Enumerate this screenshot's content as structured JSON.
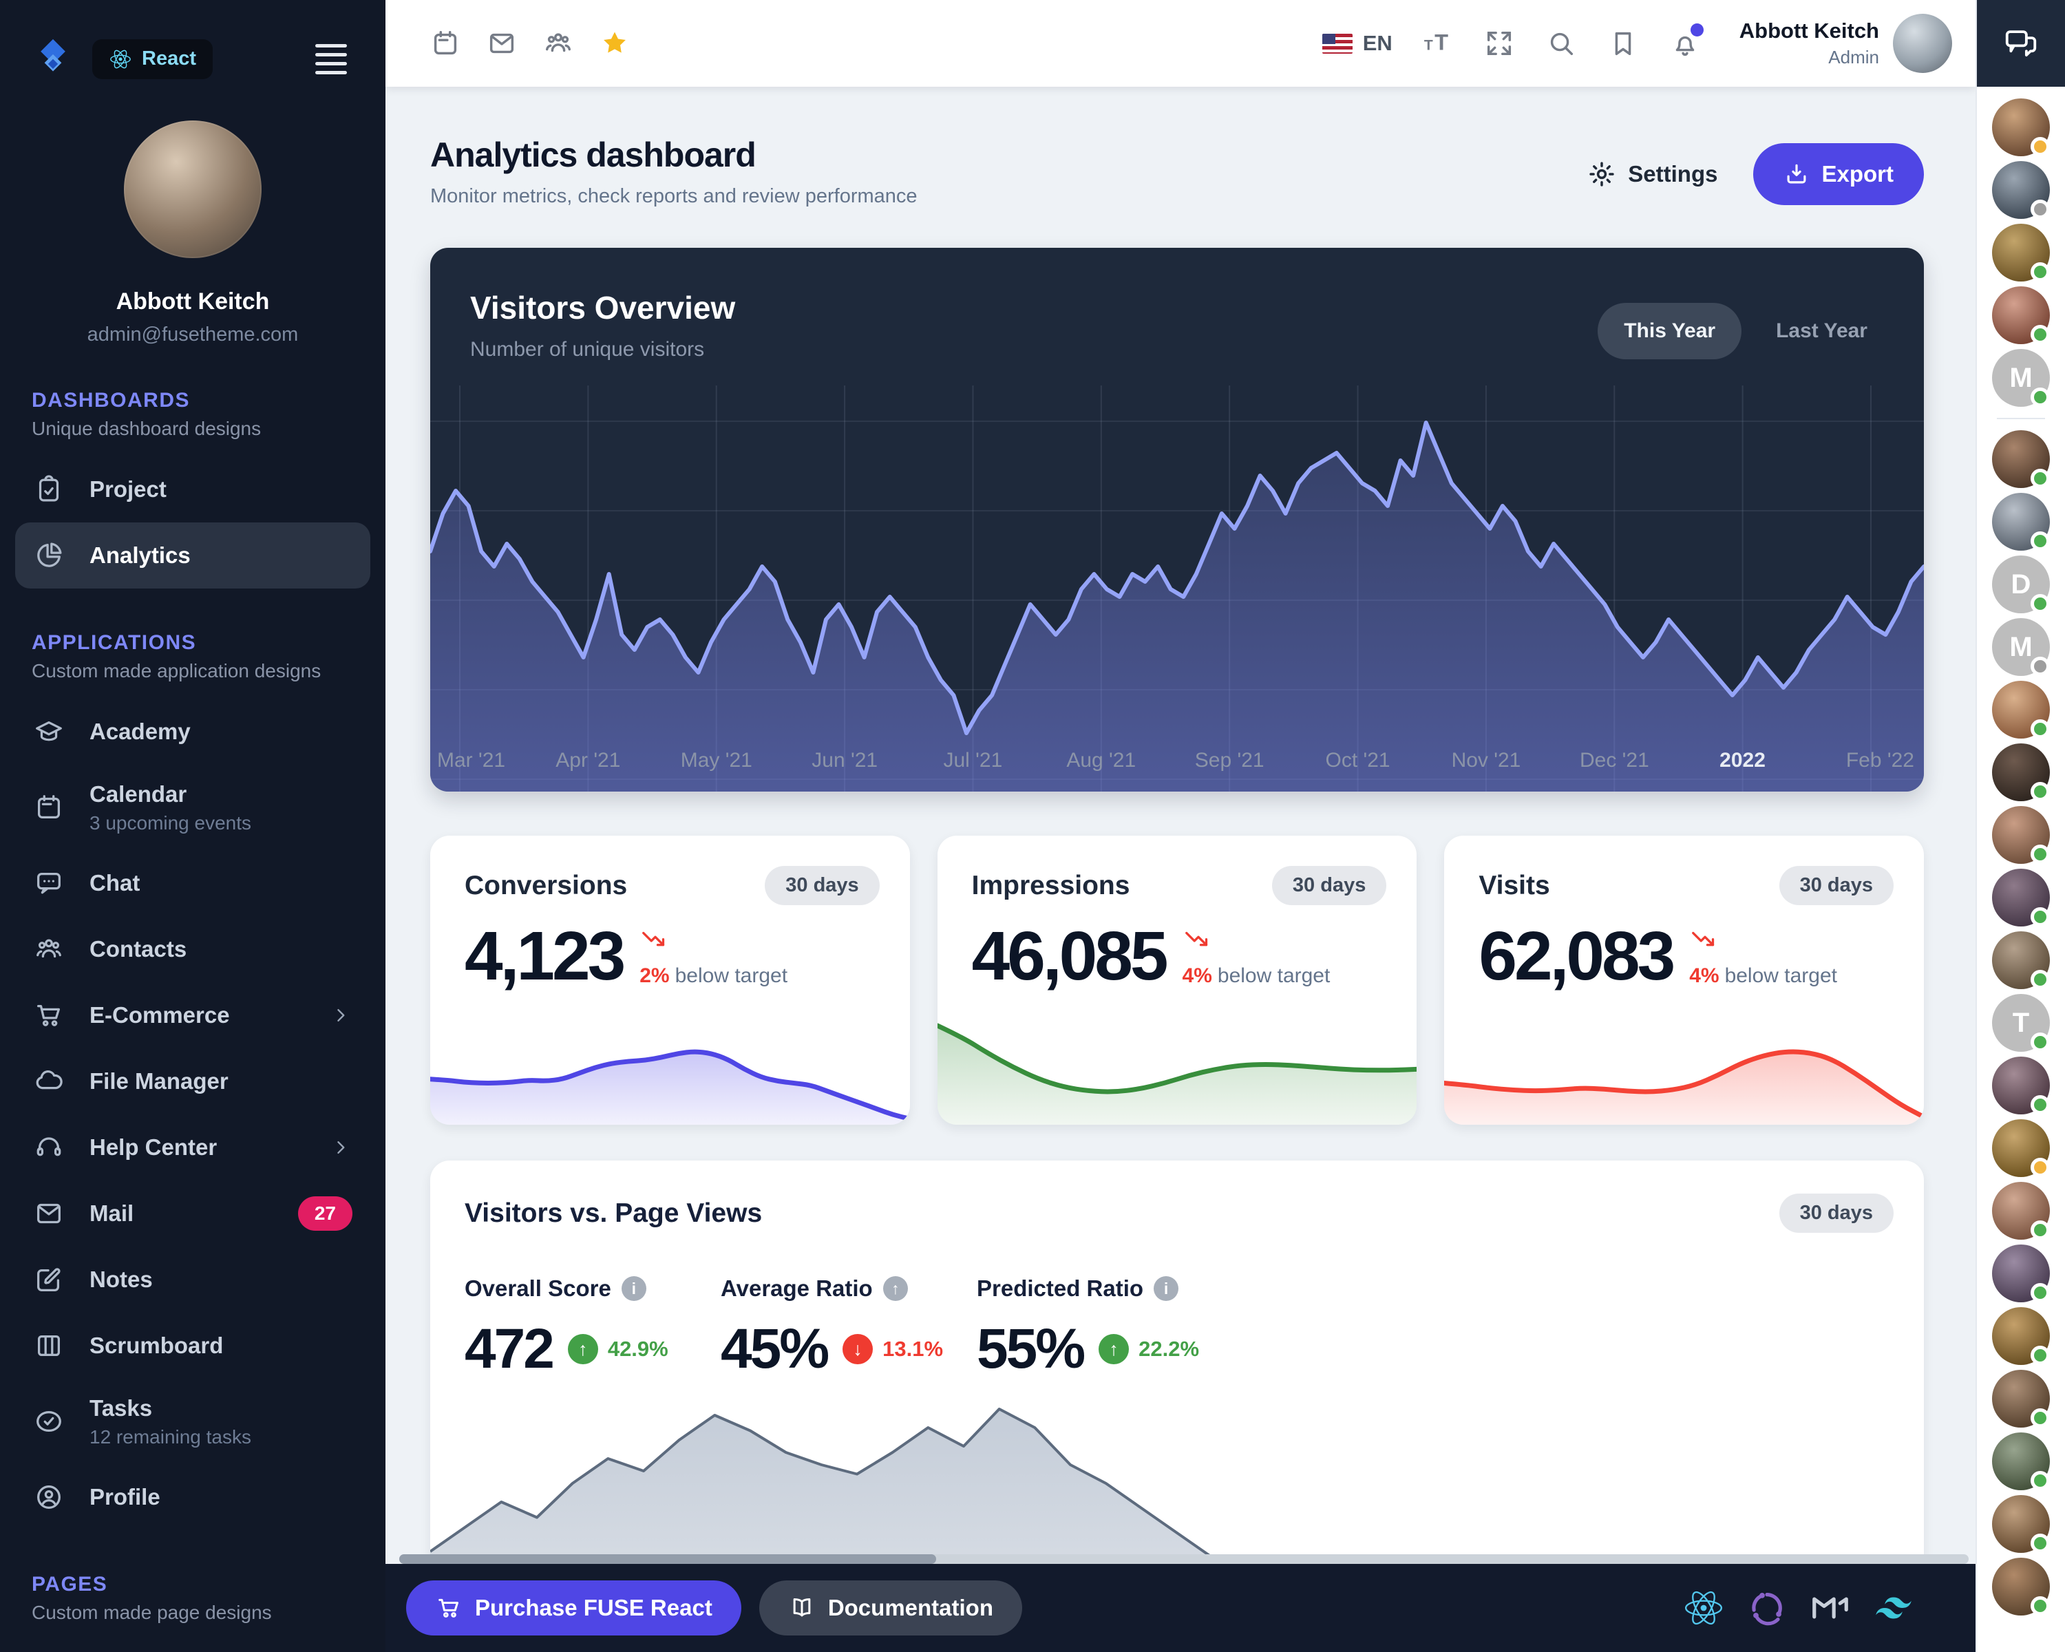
{
  "brand": {
    "product_label": "React"
  },
  "sidebar": {
    "user": {
      "name": "Abbott Keitch",
      "email": "admin@fusetheme.com"
    },
    "sections": [
      {
        "title": "DASHBOARDS",
        "subtitle": "Unique dashboard designs",
        "items": [
          {
            "icon": "clipboard",
            "label": "Project"
          },
          {
            "icon": "pie",
            "label": "Analytics",
            "selected": true
          }
        ]
      },
      {
        "title": "APPLICATIONS",
        "subtitle": "Custom made application designs",
        "items": [
          {
            "icon": "cap",
            "label": "Academy"
          },
          {
            "icon": "calendar",
            "label": "Calendar",
            "sublabel": "3 upcoming events"
          },
          {
            "icon": "chat",
            "label": "Chat"
          },
          {
            "icon": "users",
            "label": "Contacts"
          },
          {
            "icon": "cart",
            "label": "E-Commerce",
            "chevron": true
          },
          {
            "icon": "cloud",
            "label": "File Manager"
          },
          {
            "icon": "headset",
            "label": "Help Center",
            "chevron": true
          },
          {
            "icon": "mail",
            "label": "Mail",
            "badge": "27"
          },
          {
            "icon": "note",
            "label": "Notes"
          },
          {
            "icon": "board",
            "label": "Scrumboard"
          },
          {
            "icon": "taskcheck",
            "label": "Tasks",
            "sublabel": "12 remaining tasks"
          },
          {
            "icon": "user",
            "label": "Profile"
          }
        ]
      },
      {
        "title": "PAGES",
        "subtitle": "Custom made page designs",
        "items": []
      }
    ]
  },
  "toolbar": {
    "language": "EN",
    "user_name": "Abbott Keitch",
    "user_role": "Admin"
  },
  "page": {
    "title": "Analytics dashboard",
    "subtitle": "Monitor metrics, check reports and review performance",
    "settings_label": "Settings",
    "export_label": "Export"
  },
  "visitors_overview": {
    "title": "Visitors Overview",
    "subtitle": "Number of unique visitors",
    "range_options": [
      "This Year",
      "Last Year"
    ],
    "selected_range": "This Year"
  },
  "stats": [
    {
      "title": "Conversions",
      "period": "30 days",
      "value": "4,123",
      "delta": "2%",
      "delta_note": "below target",
      "trend": "down",
      "chart_id": "conversions_spark"
    },
    {
      "title": "Impressions",
      "period": "30 days",
      "value": "46,085",
      "delta": "4%",
      "delta_note": "below target",
      "trend": "down",
      "chart_id": "impressions_spark"
    },
    {
      "title": "Visits",
      "period": "30 days",
      "value": "62,083",
      "delta": "4%",
      "delta_note": "below target",
      "trend": "down",
      "chart_id": "visits_spark"
    }
  ],
  "vs_card": {
    "title": "Visitors vs. Page Views",
    "period": "30 days",
    "metrics": [
      {
        "label": "Overall Score",
        "icon": "info",
        "value": "472",
        "delta": "42.9%",
        "direction": "up"
      },
      {
        "label": "Average Ratio",
        "icon": "arrow-up",
        "value": "45%",
        "delta": "13.1%",
        "direction": "down"
      },
      {
        "label": "Predicted Ratio",
        "icon": "info",
        "value": "55%",
        "delta": "22.2%",
        "direction": "up"
      }
    ]
  },
  "footer": {
    "purchase_label": "Purchase FUSE React",
    "docs_label": "Documentation"
  },
  "chat_panel": {
    "status_colors": {
      "online": "#4caf50",
      "away": "#f2b33d",
      "offline": "#9e9e9e"
    },
    "avatars": [
      {
        "type": "photo",
        "status": "away",
        "g": [
          "#caa27c",
          "#6b4a33"
        ]
      },
      {
        "type": "photo",
        "status": "offline",
        "g": [
          "#9aa5b1",
          "#3f4a56"
        ]
      },
      {
        "type": "photo",
        "status": "online",
        "g": [
          "#c2a46a",
          "#6d5426"
        ]
      },
      {
        "type": "photo",
        "status": "online",
        "g": [
          "#d3a08e",
          "#7a4636"
        ]
      },
      {
        "type": "letter",
        "initial": "M",
        "status": "online",
        "divider_after": true
      },
      {
        "type": "photo",
        "status": "online",
        "g": [
          "#a8846b",
          "#503a2b"
        ]
      },
      {
        "type": "photo",
        "status": "online",
        "g": [
          "#b9c0c9",
          "#5a636e"
        ]
      },
      {
        "type": "letter",
        "initial": "D",
        "status": "online"
      },
      {
        "type": "letter",
        "initial": "M",
        "status": "offline"
      },
      {
        "type": "photo",
        "status": "online",
        "g": [
          "#d9b08c",
          "#8a5a3b"
        ]
      },
      {
        "type": "photo",
        "status": "online",
        "g": [
          "#6e5a4e",
          "#2f2620"
        ]
      },
      {
        "type": "photo",
        "status": "online",
        "g": [
          "#c99d85",
          "#70503c"
        ]
      },
      {
        "type": "photo",
        "status": "online",
        "g": [
          "#8e7a8a",
          "#463848"
        ]
      },
      {
        "type": "photo",
        "status": "online",
        "g": [
          "#b3a08c",
          "#5f4f3c"
        ]
      },
      {
        "type": "letter",
        "initial": "T",
        "status": "online"
      },
      {
        "type": "photo",
        "status": "online",
        "g": [
          "#a38b95",
          "#4e3a44"
        ]
      },
      {
        "type": "photo",
        "status": "away",
        "g": [
          "#c7a66e",
          "#6f5420"
        ]
      },
      {
        "type": "photo",
        "status": "online",
        "g": [
          "#d0a892",
          "#7b5440"
        ]
      },
      {
        "type": "photo",
        "status": "online",
        "g": [
          "#9b8ba3",
          "#4a3d52"
        ]
      },
      {
        "type": "photo",
        "status": "online",
        "g": [
          "#c4a06a",
          "#6a5024"
        ]
      },
      {
        "type": "photo",
        "status": "online",
        "g": [
          "#ad9078",
          "#57422f"
        ]
      },
      {
        "type": "photo",
        "status": "online",
        "g": [
          "#97a48e",
          "#45523c"
        ]
      },
      {
        "type": "photo",
        "status": "online",
        "g": [
          "#c0a080",
          "#64492f"
        ]
      },
      {
        "type": "photo",
        "status": "online",
        "g": [
          "#b08968",
          "#5c452f"
        ]
      }
    ]
  },
  "colors": {
    "accent": "#4f46e5",
    "sidebar_bg": "#111827",
    "dark_card_bg": "#1e293b",
    "mail_badge": "#e11d62",
    "star": "#f6b91e",
    "positive": "#43a047",
    "negative": "#ef3b30"
  },
  "chart_data": [
    {
      "id": "visitors_overview",
      "type": "area",
      "title": "Visitors Overview",
      "ylabel": "Number of unique visitors",
      "x_tick_labels": [
        "Mar '21",
        "Apr '21",
        "May '21",
        "Jun '21",
        "Jul '21",
        "Aug '21",
        "Sep '21",
        "Oct '21",
        "Nov '21",
        "Dec '21",
        "2022",
        "Feb '22"
      ],
      "highlighted_tick": "2022",
      "ylim": [
        0,
        100
      ],
      "grid": true,
      "legend": "none",
      "line_color": "#95a4f8",
      "fill_color": "#818cf8",
      "series": [
        {
          "name": "Visitors",
          "values": [
            62,
            72,
            78,
            74,
            62,
            58,
            64,
            60,
            54,
            50,
            46,
            40,
            34,
            44,
            56,
            40,
            36,
            42,
            44,
            40,
            34,
            30,
            38,
            44,
            48,
            52,
            58,
            54,
            44,
            38,
            30,
            44,
            48,
            42,
            34,
            46,
            50,
            46,
            42,
            34,
            28,
            24,
            14,
            20,
            24,
            32,
            40,
            48,
            44,
            40,
            44,
            52,
            56,
            52,
            50,
            56,
            54,
            58,
            52,
            50,
            56,
            64,
            72,
            68,
            74,
            82,
            78,
            72,
            80,
            84,
            86,
            88,
            84,
            80,
            78,
            74,
            86,
            82,
            96,
            88,
            80,
            76,
            72,
            68,
            74,
            70,
            62,
            58,
            64,
            60,
            56,
            52,
            48,
            42,
            38,
            34,
            38,
            44,
            40,
            36,
            32,
            28,
            24,
            28,
            34,
            30,
            26,
            30,
            36,
            40,
            44,
            50,
            46,
            42,
            40,
            46,
            54,
            58
          ]
        }
      ]
    },
    {
      "id": "conversions_spark",
      "type": "area",
      "title": "Conversions (30 days)",
      "ylim": [
        0,
        100
      ],
      "line_color": "#4f46e5",
      "values": [
        46,
        45,
        43,
        42,
        42,
        43,
        45,
        44,
        46,
        52,
        58,
        62,
        64,
        65,
        68,
        72,
        74,
        72,
        66,
        56,
        48,
        44,
        42,
        40,
        34,
        28,
        22,
        16,
        10,
        6
      ]
    },
    {
      "id": "impressions_spark",
      "type": "area",
      "title": "Impressions (30 days)",
      "ylim": [
        0,
        100
      ],
      "line_color": "#388e3c",
      "values": [
        100,
        88,
        72,
        58,
        46,
        38,
        34,
        33,
        36,
        42,
        50,
        56,
        60,
        61,
        60,
        58,
        56,
        55,
        55,
        56
      ]
    },
    {
      "id": "visits_spark",
      "type": "area",
      "title": "Visits (30 days)",
      "ylim": [
        0,
        100
      ],
      "line_color": "#f44336",
      "values": [
        42,
        40,
        37,
        35,
        34,
        35,
        37,
        36,
        34,
        33,
        35,
        40,
        50,
        62,
        70,
        74,
        73,
        66,
        52,
        36,
        20,
        8
      ]
    },
    {
      "id": "visitors_vs_page_views",
      "type": "area",
      "title": "Visitors vs. Page Views (30 days)",
      "ylim": [
        0,
        100
      ],
      "line_color": "#5d6b7e",
      "fill_color": "#94a3b8",
      "values": [
        16,
        24,
        32,
        27,
        38,
        46,
        42,
        52,
        60,
        55,
        48,
        44,
        41,
        48,
        56,
        50,
        62,
        56,
        44,
        38,
        30,
        22,
        14,
        8,
        3,
        14,
        6,
        1,
        0,
        0,
        0,
        0,
        0,
        0,
        0,
        0,
        0,
        0,
        0,
        0,
        0,
        0,
        0
      ]
    }
  ]
}
